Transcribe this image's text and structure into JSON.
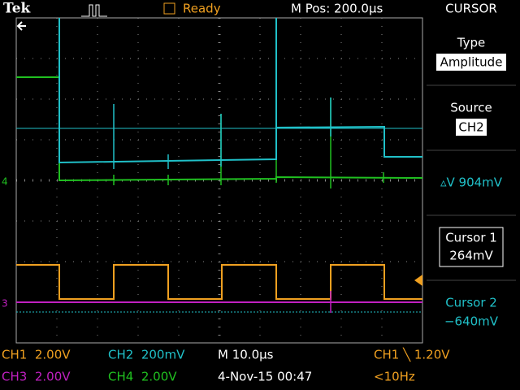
{
  "header": {
    "brand": "Tek",
    "status": "Ready",
    "position": "M Pos: 200.0µs",
    "menu_title": "CURSOR"
  },
  "menu": {
    "type_label": "Type",
    "type_value": "Amplitude",
    "source_label": "Source",
    "source_value": "CH2",
    "delta": "▵V 904mV",
    "cursor1_label": "Cursor 1",
    "cursor1_value": "264mV",
    "cursor2_label": "Cursor 2",
    "cursor2_value": "−640mV"
  },
  "markers": {
    "ch4": "4",
    "ch3": "3"
  },
  "footer": {
    "ch1": "CH1  2.00V",
    "ch2": "CH2  200mV",
    "timebase": "M 10.0µs",
    "trigger": "CH1 ╲ 1.20V",
    "ch3": "CH3  2.00V",
    "ch4": "CH4  2.00V",
    "date": "4-Nov-15 00:47",
    "frequency": "<10Hz"
  }
}
